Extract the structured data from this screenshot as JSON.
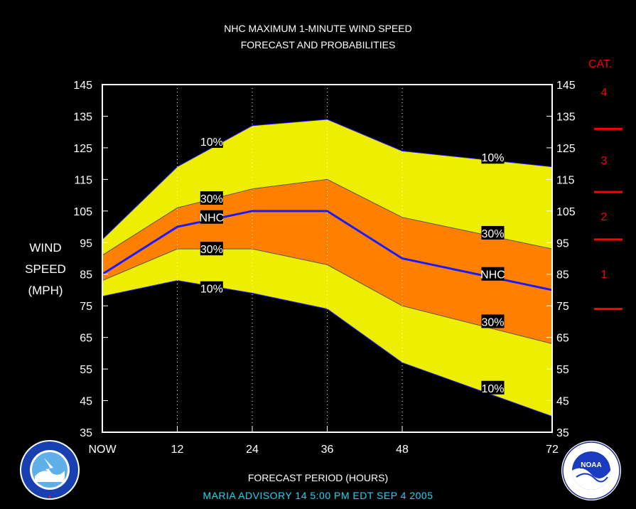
{
  "title_line1": "NHC MAXIMUM 1-MINUTE WIND SPEED",
  "title_line2": "FORECAST AND PROBABILITIES",
  "ylabel_lines": [
    "WIND",
    "SPEED",
    "(MPH)"
  ],
  "xlabel": "FORECAST PERIOD (HOURS)",
  "footer": "MARIA   ADVISORY  14 5:00  PM  EDT SEP  4 2005",
  "category_header": "CAT.",
  "category_labels": [
    "4",
    "3",
    "2",
    "1"
  ],
  "logos": {
    "left": "nws-logo",
    "right": "noaa-logo"
  },
  "colors": {
    "outer_band": "#eeee00",
    "inner_band": "#ff8000",
    "nhc_line": "#1a1aff",
    "category": "#ff0000",
    "footer": "#1fd6f0"
  },
  "chart_data": {
    "type": "area",
    "x": [
      0,
      12,
      24,
      36,
      48,
      72
    ],
    "x_tick_labels": [
      "NOW",
      "12",
      "24",
      "36",
      "48",
      "72"
    ],
    "xlim": [
      0,
      72
    ],
    "ylim": [
      35,
      145
    ],
    "y_ticks": [
      35,
      45,
      55,
      65,
      75,
      85,
      95,
      105,
      115,
      125,
      135,
      145
    ],
    "grid": "vertical dotted",
    "series": [
      {
        "role": "upper-10",
        "values": [
          96,
          119,
          132,
          134,
          124,
          119
        ]
      },
      {
        "role": "upper-30",
        "values": [
          91,
          106,
          112,
          115,
          103,
          93
        ]
      },
      {
        "name": "NHC",
        "values": [
          85,
          100,
          105,
          105,
          90,
          80
        ]
      },
      {
        "role": "lower-30",
        "values": [
          83,
          93,
          93,
          88,
          75,
          63
        ]
      },
      {
        "role": "lower-10",
        "values": [
          78,
          83,
          79,
          74,
          57,
          40
        ]
      }
    ],
    "labels": [
      {
        "text": "10%",
        "x": 17.5,
        "y": 127
      },
      {
        "text": "30%",
        "x": 17.5,
        "y": 109
      },
      {
        "text": "NHC",
        "x": 17.5,
        "y": 103
      },
      {
        "text": "30%",
        "x": 17.5,
        "y": 93
      },
      {
        "text": "10%",
        "x": 17.5,
        "y": 80.5
      },
      {
        "text": "10%",
        "x": 62.5,
        "y": 122
      },
      {
        "text": "30%",
        "x": 62.5,
        "y": 98
      },
      {
        "text": "NHC",
        "x": 62.5,
        "y": 85
      },
      {
        "text": "30%",
        "x": 62.5,
        "y": 70
      },
      {
        "text": "10%",
        "x": 62.5,
        "y": 49
      }
    ],
    "category_thresholds": [
      131,
      111,
      96,
      74
    ]
  }
}
